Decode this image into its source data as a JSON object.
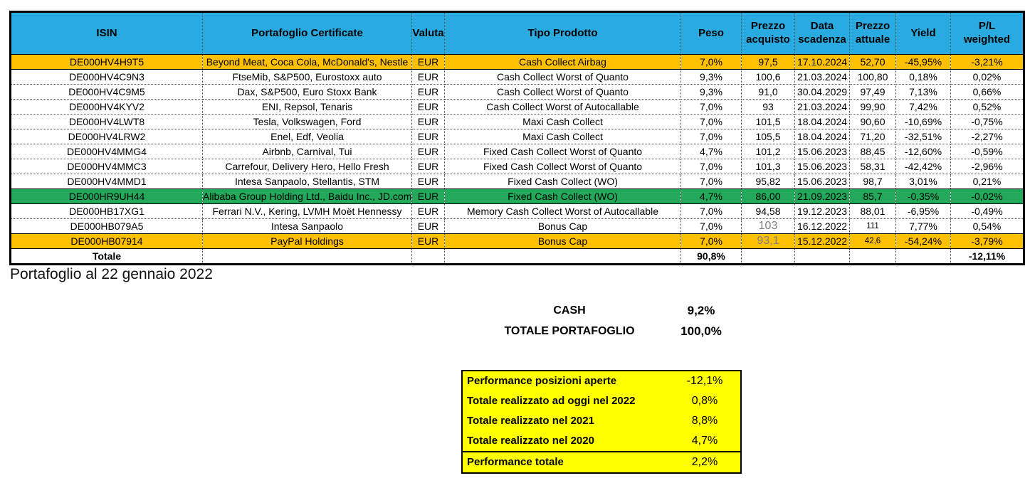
{
  "caption": "Portafoglio al 22 gennaio 2022",
  "colors": {
    "header_bg": "#29ABE2",
    "highlight_orange": "#FFC000",
    "highlight_green": "#22A95A",
    "box_yellow": "#FFFF00",
    "muted_text": "#808080"
  },
  "table": {
    "headers": [
      "ISIN",
      "Portafoglio Certificate",
      "Valuta",
      "Tipo Prodotto",
      "Peso",
      "Prezzo\nacquisto",
      "Data\nscadenza",
      "Prezzo\nattuale",
      "Yield",
      "P/L\nweighted"
    ],
    "rows": [
      {
        "cells": [
          "DE000HV4H9T5",
          "Beyond Meat, Coca Cola, McDonald's, Nestle",
          "EUR",
          "Cash Collect Airbag",
          "7,0%",
          "97,5",
          "17.10.2024",
          "52,70",
          "-45,95%",
          "-3,21%"
        ],
        "highlight": "orange"
      },
      {
        "cells": [
          "DE000HV4C9N3",
          "FtseMib, S&P500, Eurostoxx auto",
          "EUR",
          "Cash Collect Worst of Quanto",
          "9,3%",
          "100,6",
          "21.03.2024",
          "100,80",
          "0,18%",
          "0,02%"
        ]
      },
      {
        "cells": [
          "DE000HV4C9M5",
          "Dax, S&P500, Euro Stoxx Bank",
          "EUR",
          "Cash Collect Worst of Quanto",
          "9,3%",
          "91,0",
          "30.04.2029",
          "97,49",
          "7,13%",
          "0,66%"
        ]
      },
      {
        "cells": [
          "DE000HV4KYV2",
          "ENI, Repsol, Tenaris",
          "EUR",
          "Cash Collect Worst of Autocallable",
          "7,0%",
          "93",
          "21.03.2024",
          "99,90",
          "7,42%",
          "0,52%"
        ]
      },
      {
        "cells": [
          "DE000HV4LWT8",
          "Tesla, Volkswagen, Ford",
          "EUR",
          "Maxi Cash Collect",
          "7,0%",
          "101,5",
          "18.04.2024",
          "90,60",
          "-10,69%",
          "-0,75%"
        ]
      },
      {
        "cells": [
          "DE000HV4LRW2",
          "Enel, Edf, Veolia",
          "EUR",
          "Maxi Cash Collect",
          "7,0%",
          "105,5",
          "18.04.2024",
          "71,20",
          "-32,51%",
          "-2,27%"
        ]
      },
      {
        "cells": [
          "DE000HV4MMG4",
          "Airbnb, Carnival, Tui",
          "EUR",
          "Fixed Cash Collect Worst of Quanto",
          "4,7%",
          "101,2",
          "15.06.2023",
          "88,45",
          "-12,60%",
          "-0,59%"
        ]
      },
      {
        "cells": [
          "DE000HV4MMC3",
          "Carrefour, Delivery Hero, Hello Fresh",
          "EUR",
          "Fixed Cash Collect Worst of Quanto",
          "7,0%",
          "101,3",
          "15.06.2023",
          "58,31",
          "-42,42%",
          "-2,96%"
        ]
      },
      {
        "cells": [
          "DE000HV4MMD1",
          "Intesa Sanpaolo, Stellantis, STM",
          "EUR",
          "Fixed Cash Collect (WO)",
          "7,0%",
          "95,82",
          "15.06.2023",
          "98,7",
          "3,01%",
          "0,21%"
        ]
      },
      {
        "cells": [
          "DE000HR9UH44",
          "Alibaba Group Holding Ltd., Baidu Inc., JD.com",
          "EUR",
          "Fixed Cash Collect (WO)",
          "4,7%",
          "86,00",
          "21.09.2023",
          "85,7",
          "-0,35%",
          "-0,02%"
        ],
        "highlight": "green"
      },
      {
        "cells": [
          "DE000HB17XG1",
          "Ferrari N.V., Kering, LVMH Moët Hennessy",
          "EUR",
          "Memory Cash Collect Worst of Autocallable",
          "7,0%",
          "94,58",
          "19.12.2023",
          "88,01",
          "-6,95%",
          "-0,49%"
        ]
      },
      {
        "cells": [
          "DE000HB079A5",
          "Intesa Sanpaolo",
          "EUR",
          "Bonus Cap",
          "7,0%",
          "103",
          "16.12.2022",
          "111",
          "7,77%",
          "0,54%"
        ],
        "cell_styles": {
          "5": "muted",
          "7": "small"
        }
      },
      {
        "cells": [
          "DE000HB07914",
          "PayPal Holdings",
          "EUR",
          "Bonus Cap",
          "7,0%",
          "93,1",
          "15.12.2022",
          "42,6",
          "-54,24%",
          "-3,79%"
        ],
        "highlight": "orange",
        "cell_styles": {
          "5": "muted",
          "7": "small"
        }
      }
    ],
    "totale": {
      "label": "Totale",
      "peso": "90,8%",
      "pl_weighted": "-12,11%"
    }
  },
  "cash_summary": [
    {
      "label": "CASH",
      "value": "9,2%"
    },
    {
      "label": "TOTALE PORTAFOGLIO",
      "value": "100,0%"
    }
  ],
  "performance_box": {
    "rows": [
      {
        "label": "Performance posizioni aperte",
        "value": "-12,1%"
      },
      {
        "label": "Totale realizzato ad oggi nel 2022",
        "value": "0,8%"
      },
      {
        "label": "Totale realizzato nel 2021",
        "value": "8,8%"
      },
      {
        "label": "Totale realizzato nel 2020",
        "value": "4,7%"
      }
    ],
    "total_row": {
      "label": "Performance totale",
      "value": "2,2%"
    }
  }
}
